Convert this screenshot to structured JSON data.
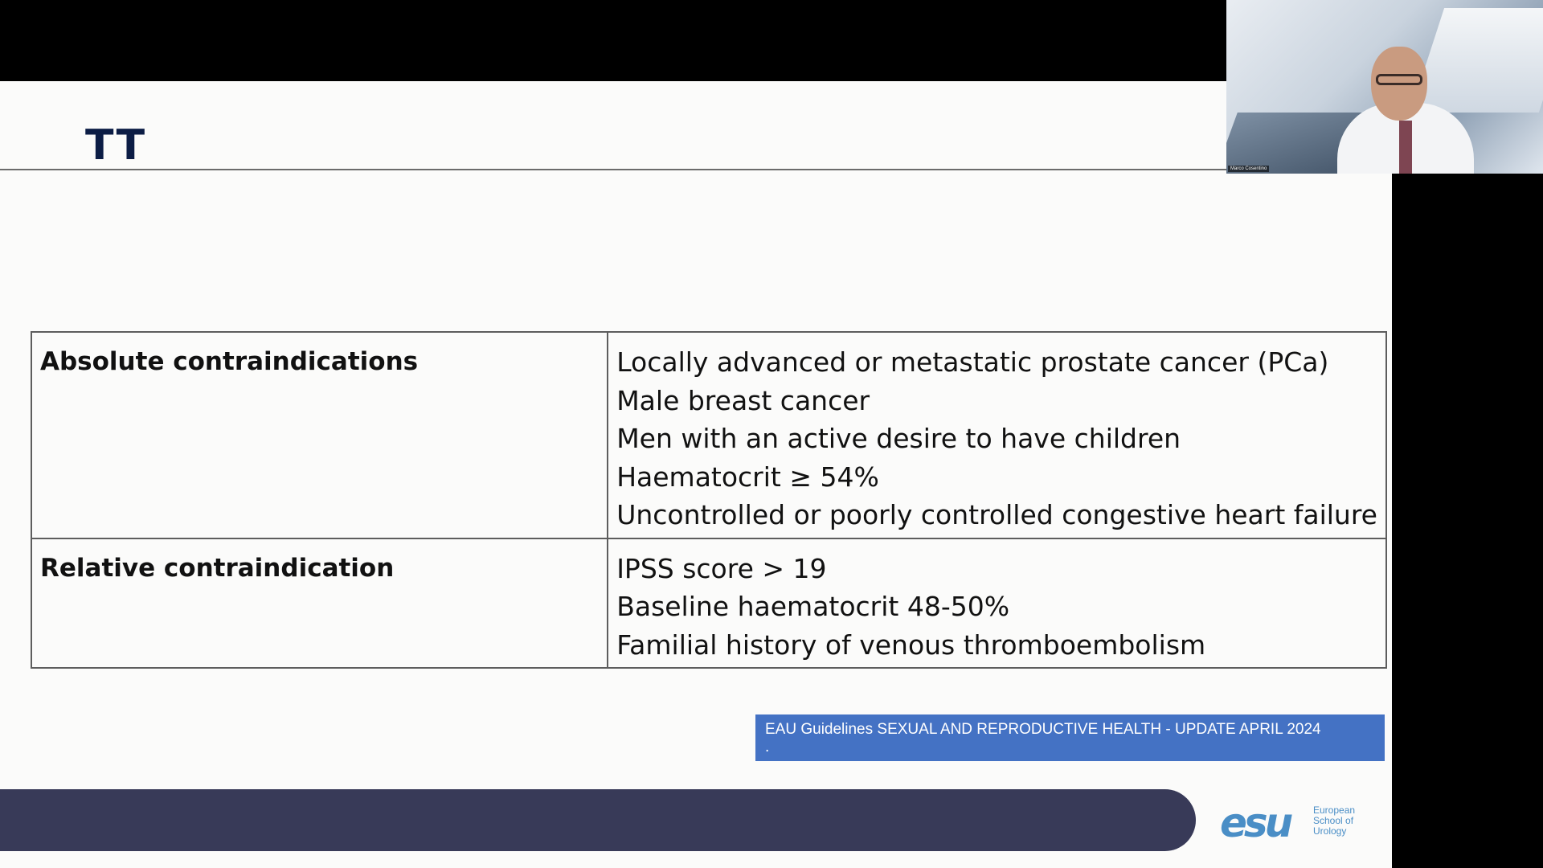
{
  "slide": {
    "title": "TT",
    "table": {
      "rows": [
        {
          "category": "Absolute contraindications",
          "items": [
            "Locally advanced or metastatic prostate cancer (PCa)",
            "Male breast cancer",
            "Men with an active desire to have children",
            "Haematocrit ≥ 54%",
            "Uncontrolled or poorly controlled congestive heart failure"
          ]
        },
        {
          "category": "Relative contraindication",
          "items": [
            "IPSS score > 19",
            "Baseline haematocrit 48-50%",
            "Familial history of venous thromboembolism"
          ]
        }
      ]
    },
    "citation": {
      "line1": "EAU Guidelines SEXUAL AND REPRODUCTIVE HEALTH - UPDATE APRIL 2024",
      "line2": "."
    },
    "logo": {
      "mark": "esu",
      "line1": "European",
      "line2": "School of",
      "line3": "Urology"
    }
  },
  "webcam": {
    "name_label": "Marco Cosentino"
  },
  "colors": {
    "title": "#0c1d45",
    "footer_bar": "#383a58",
    "citation_bg": "#4472c4",
    "logo": "#4a8ec6"
  }
}
